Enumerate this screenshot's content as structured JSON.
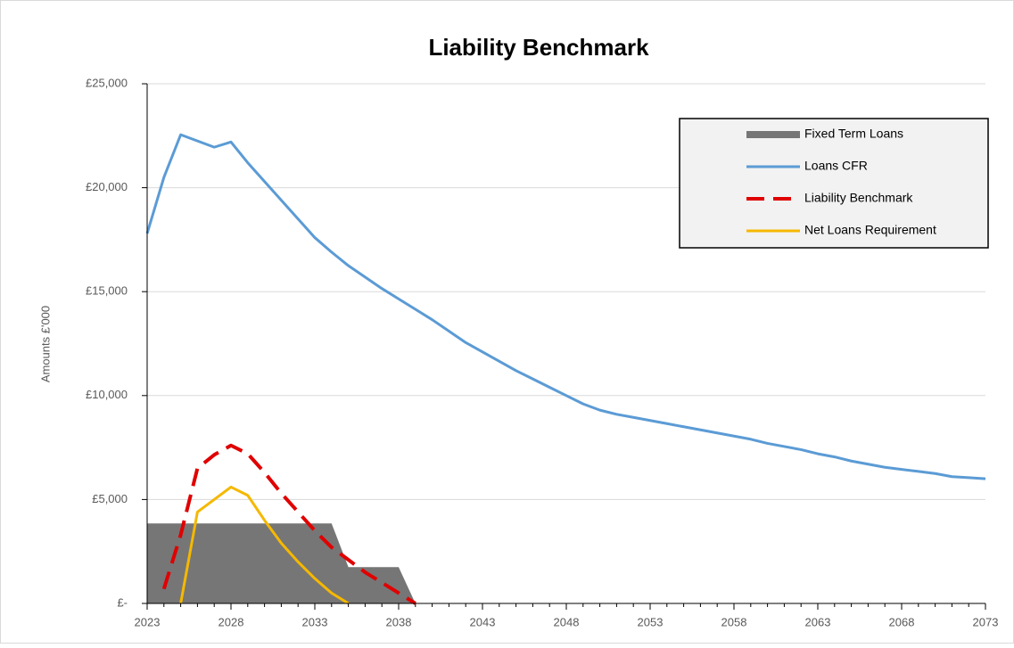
{
  "chart_data": {
    "type": "line",
    "title": "Liability Benchmark",
    "y_label": "Amounts £'000",
    "x": [
      2023,
      2024,
      2025,
      2026,
      2027,
      2028,
      2029,
      2030,
      2031,
      2032,
      2033,
      2034,
      2035,
      2036,
      2037,
      2038,
      2039,
      2040,
      2041,
      2042,
      2043,
      2044,
      2045,
      2046,
      2047,
      2048,
      2049,
      2050,
      2051,
      2052,
      2053,
      2054,
      2055,
      2056,
      2057,
      2058,
      2059,
      2060,
      2061,
      2062,
      2063,
      2064,
      2065,
      2066,
      2067,
      2068,
      2069,
      2070,
      2071,
      2072,
      2073
    ],
    "xlim": [
      2023,
      2073
    ],
    "xticks": [
      2023,
      2028,
      2033,
      2038,
      2043,
      2048,
      2053,
      2058,
      2063,
      2068,
      2073
    ],
    "ylim": [
      0,
      25000
    ],
    "yticks": [
      {
        "value": 0,
        "label": "£-"
      },
      {
        "value": 5000,
        "label": "£5,000"
      },
      {
        "value": 10000,
        "label": "£10,000"
      },
      {
        "value": 15000,
        "label": "£15,000"
      },
      {
        "value": 20000,
        "label": "£20,000"
      },
      {
        "value": 25000,
        "label": "£25,000"
      }
    ],
    "grid": true,
    "legend": "upper right",
    "series": [
      {
        "name": "Fixed Term Loans",
        "color": "#767676",
        "style": "area",
        "values": [
          3850,
          3850,
          3850,
          3850,
          3850,
          3850,
          3850,
          3850,
          3850,
          3850,
          3850,
          3850,
          1750,
          1750,
          1750,
          1750,
          0,
          0,
          0,
          0,
          0,
          0,
          0,
          0,
          0,
          0,
          0,
          0,
          0,
          0,
          0,
          0,
          0,
          0,
          0,
          0,
          0,
          0,
          0,
          0,
          0,
          0,
          0,
          0,
          0,
          0,
          0,
          0,
          0,
          0,
          0
        ]
      },
      {
        "name": "Loans CFR",
        "color": "#5b9bd5",
        "style": "line",
        "values": [
          17800,
          20500,
          22550,
          22250,
          21950,
          22200,
          21200,
          20300,
          19400,
          18500,
          17600,
          16900,
          16250,
          15700,
          15150,
          14650,
          14150,
          13650,
          13100,
          12550,
          12100,
          11650,
          11200,
          10800,
          10400,
          10000,
          9600,
          9300,
          9100,
          8950,
          8800,
          8650,
          8500,
          8350,
          8200,
          8050,
          7900,
          7700,
          7550,
          7400,
          7200,
          7050,
          6850,
          6700,
          6550,
          6450,
          6350,
          6250,
          6100,
          6050,
          6000
        ]
      },
      {
        "name": "Liability Benchmark",
        "color": "#e00000",
        "style": "dashed",
        "values": [
          null,
          700,
          3300,
          6500,
          7150,
          7600,
          7200,
          6300,
          5300,
          4400,
          3500,
          2700,
          2100,
          1500,
          1000,
          500,
          0,
          null,
          null,
          null,
          null,
          null,
          null,
          null,
          null,
          null,
          null,
          null,
          null,
          null,
          null,
          null,
          null,
          null,
          null,
          null,
          null,
          null,
          null,
          null,
          null,
          null,
          null,
          null,
          null,
          null,
          null,
          null,
          null,
          null,
          null
        ]
      },
      {
        "name": "Net Loans Requirement",
        "color": "#f5b800",
        "style": "line",
        "values": [
          null,
          null,
          0,
          4400,
          5000,
          5600,
          5200,
          4000,
          2900,
          2000,
          1200,
          500,
          0,
          null,
          null,
          null,
          null,
          null,
          null,
          null,
          null,
          null,
          null,
          null,
          null,
          null,
          null,
          null,
          null,
          null,
          null,
          null,
          null,
          null,
          null,
          null,
          null,
          null,
          null,
          null,
          null,
          null,
          null,
          null,
          null,
          null,
          null,
          null,
          null,
          null,
          null
        ]
      }
    ]
  }
}
